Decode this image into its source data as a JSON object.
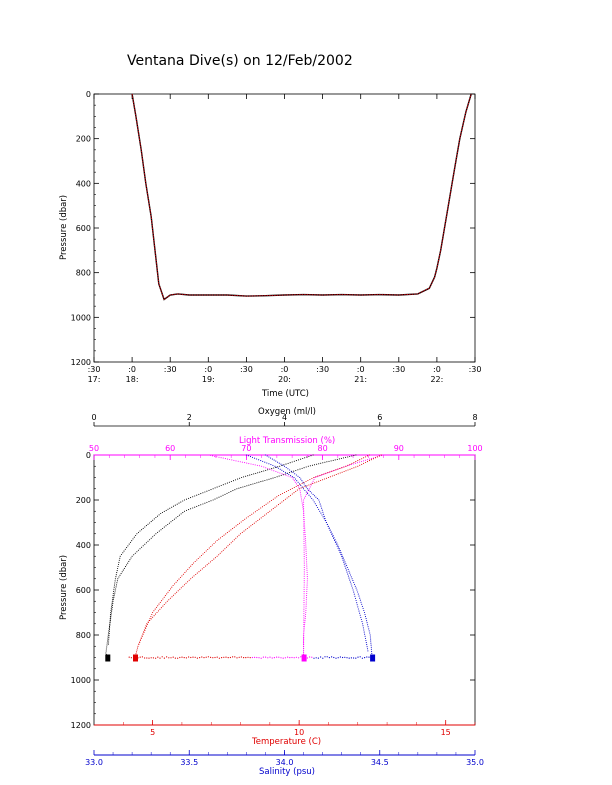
{
  "title": "Ventana Dive(s) on 12/Feb/2002",
  "colors": {
    "trace_red": "#e8000b",
    "trace_black": "#000000",
    "oxygen": "#000000",
    "transmission": "#ff00ff",
    "temperature": "#e00000",
    "salinity": "#0000cc"
  },
  "chart_data": [
    {
      "type": "line",
      "title": "Ventana Dive(s) on 12/Feb/2002",
      "xlabel": "Time (UTC)",
      "ylabel": "Pressure (dbar)",
      "y_inverted": true,
      "ylim": [
        1200,
        0
      ],
      "yticks": [
        "0",
        "200",
        "400",
        "600",
        "800",
        "1000",
        "1200"
      ],
      "xticks": [
        {
          "minute": ":30",
          "hour": "17:"
        },
        {
          "minute": ":0",
          "hour": "18:"
        },
        {
          "minute": ":30",
          "hour": ""
        },
        {
          "minute": ":0",
          "hour": "19:"
        },
        {
          "minute": ":30",
          "hour": ""
        },
        {
          "minute": ":0",
          "hour": "20:"
        },
        {
          "minute": ":30",
          "hour": ""
        },
        {
          "minute": ":0",
          "hour": "21:"
        },
        {
          "minute": ":30",
          "hour": ""
        },
        {
          "minute": ":0",
          "hour": "22:"
        },
        {
          "minute": ":30",
          "hour": ""
        }
      ],
      "series": [
        {
          "x_hours": [
            18.0,
            18.05,
            18.12,
            18.18,
            18.25,
            18.3,
            18.35,
            18.42,
            18.5,
            18.6,
            18.75,
            19.0,
            19.25,
            19.5,
            19.75,
            20.0,
            20.25,
            20.5,
            20.75,
            21.0,
            21.25,
            21.5,
            21.75,
            21.9,
            21.97,
            22.0,
            22.05,
            22.1,
            22.15,
            22.2,
            22.25,
            22.3,
            22.38,
            22.45
          ],
          "pressure_dbar": [
            0,
            100,
            250,
            400,
            550,
            700,
            850,
            920,
            900,
            895,
            900,
            900,
            900,
            905,
            903,
            900,
            898,
            900,
            898,
            900,
            898,
            900,
            895,
            870,
            820,
            780,
            700,
            600,
            500,
            400,
            300,
            200,
            80,
            0
          ]
        }
      ]
    },
    {
      "type": "scatter",
      "ylabel": "Pressure (dbar)",
      "y_inverted": true,
      "ylim": [
        1200,
        0
      ],
      "yticks": [
        "0",
        "200",
        "400",
        "600",
        "800",
        "1000",
        "1200"
      ],
      "axes": {
        "oxygen": {
          "label": "Oxygen (ml/l)",
          "range": [
            0,
            8
          ],
          "ticks": [
            "0",
            "2",
            "4",
            "6",
            "8"
          ]
        },
        "transmission": {
          "label": "Light Transmission (%)",
          "range": [
            50,
            100
          ],
          "ticks": [
            "50",
            "60",
            "70",
            "80",
            "90",
            "100"
          ]
        },
        "temperature": {
          "label": "Temperature (C)",
          "range": [
            3,
            16
          ],
          "ticks": [
            "5",
            "10",
            "15"
          ]
        },
        "salinity": {
          "label": "Salinity (psu)",
          "range": [
            33.0,
            35.0
          ],
          "ticks": [
            "33.0",
            "33.5",
            "34.0",
            "34.5",
            "35.0"
          ]
        }
      },
      "series": [
        {
          "name": "Oxygen",
          "axis": "oxygen",
          "x": [
            5.5,
            4.5,
            3.8,
            3.0,
            2.5,
            1.9,
            1.3,
            0.8,
            0.5,
            0.4,
            0.3,
            0.25,
            0.28
          ],
          "pressure": [
            0,
            50,
            100,
            150,
            200,
            250,
            350,
            450,
            550,
            650,
            800,
            880,
            900
          ],
          "x2": [
            4.6,
            3.9,
            3.1,
            2.5,
            1.9,
            1.4,
            0.9,
            0.55,
            0.45,
            0.35,
            0.3
          ],
          "pressure2": [
            0,
            50,
            100,
            150,
            200,
            260,
            350,
            450,
            550,
            700,
            850
          ]
        },
        {
          "name": "Light Transmission",
          "axis": "transmission",
          "x": [
            65,
            72,
            76,
            77,
            77.5,
            77.8,
            78,
            77.8,
            77.5,
            77.5,
            77.5
          ],
          "pressure": [
            0,
            50,
            100,
            150,
            250,
            400,
            550,
            700,
            800,
            870,
            900
          ],
          "x2": [
            88,
            83,
            79,
            77.5,
            77.6,
            77.5
          ],
          "pressure2": [
            0,
            50,
            100,
            200,
            500,
            880
          ]
        },
        {
          "name": "Temperature",
          "axis": "temperature",
          "x": [
            12.8,
            12.0,
            11.0,
            10.0,
            9.0,
            8.0,
            7.2,
            6.3,
            5.5,
            4.8,
            4.5,
            4.4
          ],
          "pressure": [
            0,
            50,
            100,
            150,
            250,
            350,
            450,
            550,
            650,
            750,
            850,
            900
          ],
          "x2": [
            12.4,
            11.6,
            10.5,
            9.3,
            8.2,
            7.2,
            6.4,
            5.7,
            5.0,
            4.5
          ],
          "pressure2": [
            0,
            50,
            100,
            180,
            280,
            380,
            480,
            580,
            700,
            850
          ]
        },
        {
          "name": "Salinity",
          "axis": "salinity",
          "x": [
            33.9,
            34.0,
            34.08,
            34.12,
            34.18,
            34.22,
            34.28,
            34.33,
            34.38,
            34.42,
            34.45,
            34.46
          ],
          "pressure": [
            0,
            50,
            100,
            150,
            200,
            300,
            400,
            500,
            600,
            700,
            800,
            900
          ],
          "x2": [
            33.8,
            33.95,
            34.05,
            34.15,
            34.22,
            34.3,
            34.36,
            34.41,
            34.44
          ],
          "pressure2": [
            0,
            50,
            100,
            200,
            300,
            450,
            600,
            750,
            880
          ]
        }
      ]
    }
  ]
}
